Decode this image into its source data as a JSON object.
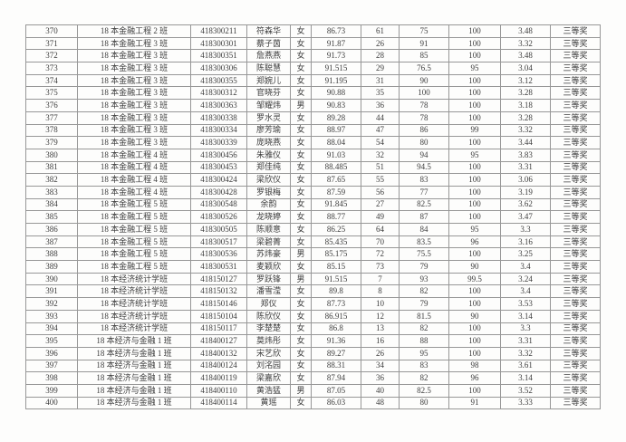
{
  "colors": {
    "page_background": "#fdfdfc",
    "grid_line": "#979797",
    "outer_border": "#6f6f6f",
    "text": "#3c3c3c"
  },
  "table": {
    "award_label": "三等奖",
    "rows": [
      [
        "370",
        "18 本金融工程 2 班",
        "418300211",
        "符森华",
        "女",
        "86.73",
        "61",
        "75",
        "100",
        "3.48",
        "三等奖"
      ],
      [
        "371",
        "18 本金融工程 3 班",
        "418300301",
        "蔡子茵",
        "女",
        "91.87",
        "26",
        "91",
        "100",
        "3.32",
        "三等奖"
      ],
      [
        "372",
        "18 本金融工程 3 班",
        "418300351",
        "詹燕燕",
        "女",
        "91.73",
        "28",
        "85",
        "100",
        "3.48",
        "三等奖"
      ],
      [
        "373",
        "18 本金融工程 3 班",
        "418300306",
        "陈聪慧",
        "女",
        "91.515",
        "29",
        "76.5",
        "95",
        "3.04",
        "三等奖"
      ],
      [
        "374",
        "18 本金融工程 3 班",
        "418300355",
        "郑婉儿",
        "女",
        "91.195",
        "31",
        "90",
        "100",
        "3.12",
        "三等奖"
      ],
      [
        "375",
        "18 本金融工程 3 班",
        "418300312",
        "官晓芬",
        "女",
        "90.88",
        "35",
        "100",
        "100",
        "3.28",
        "三等奖"
      ],
      [
        "376",
        "18 本金融工程 3 班",
        "418300363",
        "邹耀炜",
        "男",
        "90.83",
        "36",
        "78",
        "100",
        "3.18",
        "三等奖"
      ],
      [
        "377",
        "18 本金融工程 3 班",
        "418300338",
        "罗水灵",
        "女",
        "89.28",
        "44",
        "78",
        "100",
        "3.28",
        "三等奖"
      ],
      [
        "378",
        "18 本金融工程 3 班",
        "418300334",
        "廖芳瑜",
        "女",
        "88.97",
        "47",
        "86",
        "99",
        "3.32",
        "三等奖"
      ],
      [
        "379",
        "18 本金融工程 3 班",
        "418300339",
        "庞晓燕",
        "女",
        "88.04",
        "54",
        "80",
        "100",
        "3.44",
        "三等奖"
      ],
      [
        "380",
        "18 本金融工程 4 班",
        "418300456",
        "朱雅仪",
        "女",
        "91.03",
        "32",
        "94",
        "95",
        "3.83",
        "三等奖"
      ],
      [
        "381",
        "18 本金融工程 4 班",
        "418300453",
        "郑佳纯",
        "女",
        "88.485",
        "51",
        "94.5",
        "100",
        "3.31",
        "三等奖"
      ],
      [
        "382",
        "18 本金融工程 4 班",
        "418300424",
        "梁欣仪",
        "女",
        "87.65",
        "55",
        "83",
        "100",
        "3.06",
        "三等奖"
      ],
      [
        "383",
        "18 本金融工程 4 班",
        "418300428",
        "罗银梅",
        "女",
        "87.59",
        "56",
        "77",
        "100",
        "3.19",
        "三等奖"
      ],
      [
        "384",
        "18 本金融工程 5 班",
        "418300548",
        "余韵",
        "女",
        "91.845",
        "27",
        "82.5",
        "100",
        "3.62",
        "三等奖"
      ],
      [
        "385",
        "18 本金融工程 5 班",
        "418300526",
        "龙晓婷",
        "女",
        "88.77",
        "49",
        "87",
        "100",
        "3.47",
        "三等奖"
      ],
      [
        "386",
        "18 本金融工程 5 班",
        "418300505",
        "陈顺意",
        "女",
        "86.25",
        "64",
        "84",
        "95",
        "3.3",
        "三等奖"
      ],
      [
        "387",
        "18 本金融工程 5 班",
        "418300517",
        "梁碧菁",
        "女",
        "85.435",
        "70",
        "83.5",
        "96",
        "3.16",
        "三等奖"
      ],
      [
        "388",
        "18 本金融工程 5 班",
        "418300536",
        "苏炜豪",
        "男",
        "85.175",
        "72",
        "75.5",
        "100",
        "3.25",
        "三等奖"
      ],
      [
        "389",
        "18 本金融工程 5 班",
        "418300531",
        "麦颖欣",
        "女",
        "85.15",
        "73",
        "79",
        "90",
        "3.4",
        "三等奖"
      ],
      [
        "390",
        "18 本经济统计学班",
        "418150127",
        "罗跃锋",
        "男",
        "91.515",
        "7",
        "93",
        "99.5",
        "3.24",
        "三等奖"
      ],
      [
        "391",
        "18 本经济统计学班",
        "418150132",
        "潘雪滢",
        "女",
        "89.8",
        "8",
        "82",
        "100",
        "3.4",
        "三等奖"
      ],
      [
        "392",
        "18 本经济统计学班",
        "418150146",
        "郑仪",
        "女",
        "87.73",
        "10",
        "79",
        "100",
        "3.53",
        "三等奖"
      ],
      [
        "393",
        "18 本经济统计学班",
        "418150104",
        "陈欣仪",
        "女",
        "86.915",
        "12",
        "81.5",
        "90",
        "3.14",
        "三等奖"
      ],
      [
        "394",
        "18 本经济统计学班",
        "418150117",
        "李楚楚",
        "女",
        "86.8",
        "13",
        "82",
        "100",
        "3.3",
        "三等奖"
      ],
      [
        "395",
        "18 本经济与金融 1 班",
        "418400127",
        "莫炜彤",
        "女",
        "91.36",
        "16",
        "88",
        "100",
        "3.31",
        "三等奖"
      ],
      [
        "396",
        "18 本经济与金融 1 班",
        "418400132",
        "宋艺欣",
        "女",
        "89.27",
        "26",
        "95",
        "100",
        "3.32",
        "三等奖"
      ],
      [
        "397",
        "18 本经济与金融 1 班",
        "418400124",
        "刘洺园",
        "女",
        "88.31",
        "34",
        "83",
        "98",
        "3.61",
        "三等奖"
      ],
      [
        "398",
        "18 本经济与金融 1 班",
        "418400119",
        "梁嘉欣",
        "女",
        "87.94",
        "36",
        "82",
        "96",
        "3.14",
        "三等奖"
      ],
      [
        "399",
        "18 本经济与金融 1 班",
        "418400110",
        "黄浩猛",
        "男",
        "87.05",
        "40",
        "82.5",
        "100",
        "3.52",
        "三等奖"
      ],
      [
        "400",
        "18 本经济与金融 1 班",
        "418400114",
        "黄瑶",
        "女",
        "86.03",
        "48",
        "80",
        "91",
        "3.33",
        "三等奖"
      ]
    ]
  }
}
